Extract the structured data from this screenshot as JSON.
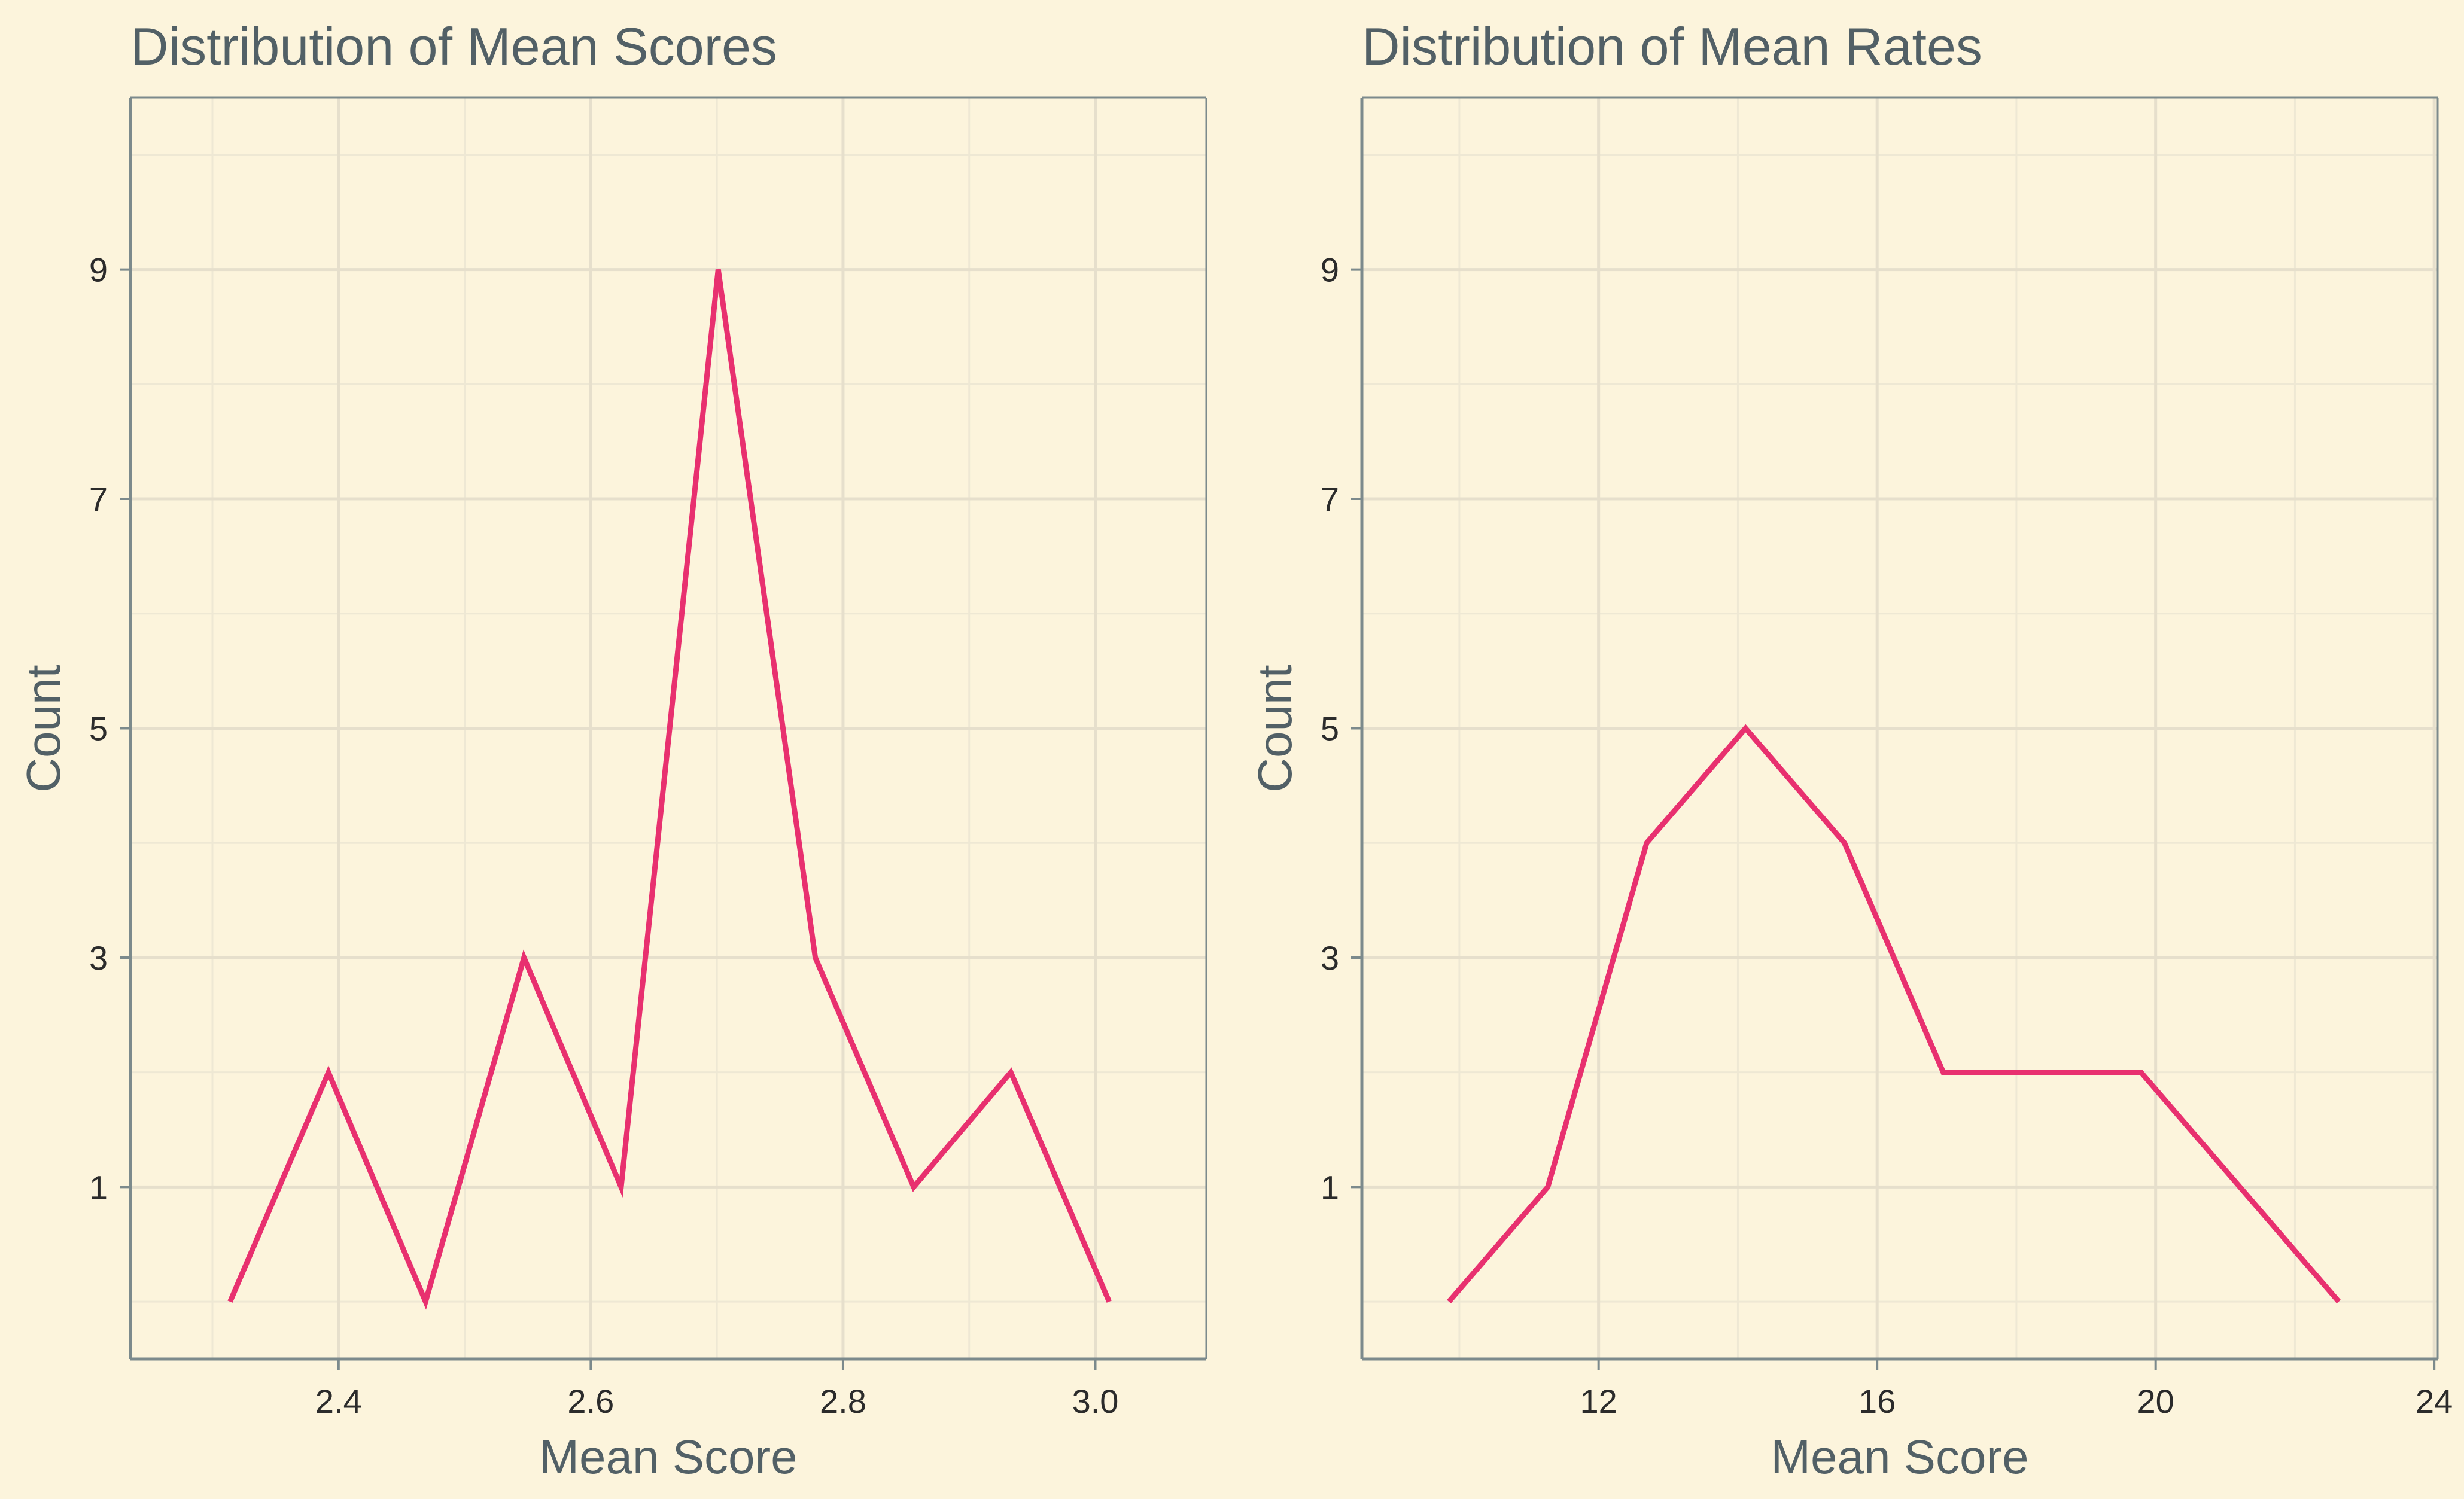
{
  "colors": {
    "background": "#fcf4dc",
    "line": "#e8306f",
    "frame": "#7c8a8c",
    "grid_major": "#e6dfcc",
    "grid_minor": "#eee8d4",
    "title": "#526066",
    "tick_label": "#2b2b2b"
  },
  "chart_data": [
    {
      "type": "line",
      "title": "Distribution of Mean Scores",
      "xlabel": "Mean Score",
      "ylabel": "Count",
      "xlim": [
        2.235,
        3.088
      ],
      "ylim": [
        -0.5,
        10.5
      ],
      "xticks": [
        2.4,
        2.6,
        2.8,
        3.0
      ],
      "xtick_labels": [
        "2.4",
        "2.6",
        "2.8",
        "3.0"
      ],
      "yticks": [
        1,
        3,
        5,
        7,
        9
      ],
      "ytick_labels": [
        "1",
        "3",
        "5",
        "7",
        "9"
      ],
      "grid": true,
      "series": [
        {
          "x": [
            2.314,
            2.392,
            2.469,
            2.547,
            2.624,
            2.701,
            2.778,
            2.856,
            2.933,
            3.011
          ],
          "y": [
            0,
            2,
            0,
            3,
            1,
            9,
            3,
            1,
            2,
            0
          ]
        }
      ]
    },
    {
      "type": "line",
      "title": "Distribution of Mean Rates",
      "xlabel": "Mean Score",
      "ylabel": "Count",
      "xlim": [
        8.6,
        24.05
      ],
      "ylim": [
        -0.5,
        10.5
      ],
      "xticks": [
        12,
        16,
        20,
        24
      ],
      "xtick_labels": [
        "12",
        "16",
        "20",
        "24"
      ],
      "yticks": [
        1,
        3,
        5,
        7,
        9
      ],
      "ytick_labels": [
        "1",
        "3",
        "5",
        "7",
        "9"
      ],
      "grid": true,
      "series": [
        {
          "x": [
            9.85,
            11.27,
            12.69,
            14.11,
            15.53,
            16.95,
            18.37,
            19.79,
            21.21,
            22.63
          ],
          "y": [
            0,
            1,
            4,
            5,
            4,
            2,
            2,
            2,
            1,
            0
          ]
        }
      ]
    }
  ]
}
